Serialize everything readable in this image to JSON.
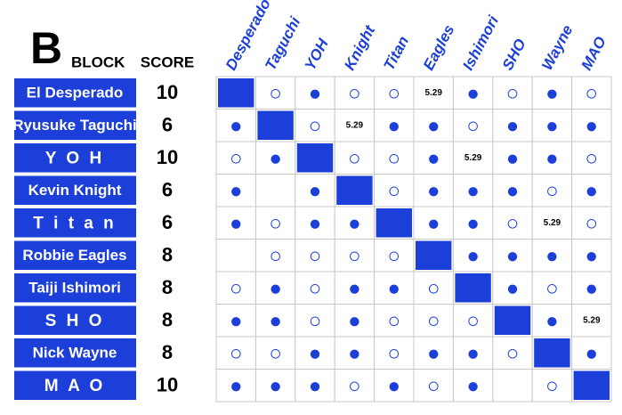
{
  "header": {
    "block_letter": "B",
    "block": "BLOCK",
    "score": "SCORE"
  },
  "columns": [
    "Desperado",
    "Taguchi",
    "YOH",
    "Knight",
    "Titan",
    "Eagles",
    "Ishimori",
    "SHO",
    "Wayne",
    "MAO"
  ],
  "rows": [
    {
      "name": "El Desperado",
      "score": 10,
      "results": [
        null,
        "○",
        "●",
        "○",
        "○",
        "5.29",
        "●",
        "○",
        "●",
        "○"
      ]
    },
    {
      "name": "Ryusuke Taguchi",
      "score": 6,
      "results": [
        "●",
        null,
        "○",
        "5.29",
        "●",
        "●",
        "○",
        "●",
        "●",
        "●"
      ]
    },
    {
      "name": "Y O H",
      "score": 10,
      "results": [
        "○",
        "●",
        null,
        "○",
        "○",
        "●",
        "5.29",
        "●",
        "●",
        "○"
      ]
    },
    {
      "name": "Kevin Knight",
      "score": 6,
      "results": [
        "●",
        null,
        "●",
        null,
        "○",
        "●",
        "●",
        "●",
        "○",
        "●"
      ]
    },
    {
      "name": "T i t a n",
      "score": 6,
      "results": [
        "●",
        "○",
        "●",
        "●",
        null,
        "●",
        "●",
        "○",
        "5.29",
        "○"
      ]
    },
    {
      "name": "Robbie Eagles",
      "score": 8,
      "results": [
        null,
        "○",
        "○",
        "○",
        "○",
        null,
        "●",
        "●",
        "●",
        "●"
      ]
    },
    {
      "name": "Taiji Ishimori",
      "score": 8,
      "results": [
        "○",
        "●",
        "○",
        "●",
        "●",
        "○",
        null,
        "●",
        "○",
        "●"
      ]
    },
    {
      "name": "S H O",
      "score": 8,
      "results": [
        "●",
        "●",
        "○",
        "●",
        "○",
        "○",
        "○",
        null,
        "●",
        "5.29"
      ]
    },
    {
      "name": "Nick Wayne",
      "score": 8,
      "results": [
        "○",
        "○",
        "●",
        "●",
        "○",
        "●",
        "●",
        "○",
        null,
        "●"
      ]
    },
    {
      "name": "M A O",
      "score": 10,
      "results": [
        "●",
        "●",
        "●",
        "○",
        "●",
        "○",
        "●",
        null,
        "○",
        null
      ]
    }
  ]
}
